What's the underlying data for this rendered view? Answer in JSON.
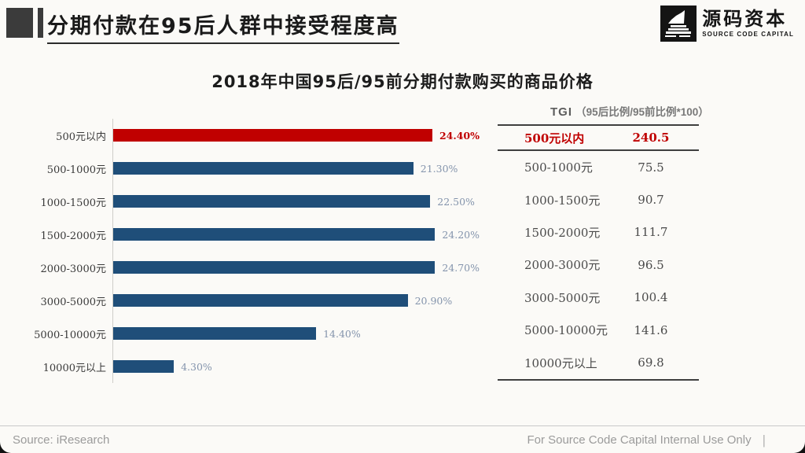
{
  "header": {
    "title": "分期付款在95后人群中接受程度高",
    "logo": {
      "cn": "源码资本",
      "en": "SOURCE CODE CAPITAL"
    }
  },
  "chart_data": {
    "type": "bar",
    "orientation": "horizontal",
    "title": "2018年中国95后/95前分期付款购买的商品价格",
    "categories": [
      "500元以内",
      "500-1000元",
      "1000-1500元",
      "1500-2000元",
      "2000-3000元",
      "3000-5000元",
      "5000-10000元",
      "10000元以上"
    ],
    "values": [
      24.4,
      21.3,
      22.5,
      24.2,
      24.7,
      20.9,
      14.4,
      4.3
    ],
    "value_labels": [
      "24.40%",
      "21.30%",
      "22.50%",
      "24.20%",
      "24.70%",
      "20.90%",
      "14.40%",
      "4.30%"
    ],
    "highlight_index": 0,
    "xlim": [
      0,
      26
    ],
    "grid": false,
    "legend": "none",
    "colors": {
      "highlight_bar": "#c00000",
      "default_bar": "#1f4e79",
      "highlight_value_label": "#c00000",
      "default_value_label": "#8494ac"
    }
  },
  "tgi_table": {
    "header_main": "TGI",
    "header_sub": "（95后比例/95前比例*100）",
    "highlight_color": "#c00000",
    "rows": [
      {
        "label": "500元以内",
        "value": "240.5",
        "highlight": true
      },
      {
        "label": "500-1000元",
        "value": "75.5",
        "highlight": false
      },
      {
        "label": "1000-1500元",
        "value": "90.7",
        "highlight": false
      },
      {
        "label": "1500-2000元",
        "value": "111.7",
        "highlight": false
      },
      {
        "label": "2000-3000元",
        "value": "96.5",
        "highlight": false
      },
      {
        "label": "3000-5000元",
        "value": "100.4",
        "highlight": false
      },
      {
        "label": "5000-10000元",
        "value": "141.6",
        "highlight": false
      },
      {
        "label": "10000元以上",
        "value": "69.8",
        "highlight": false
      }
    ]
  },
  "footer": {
    "source": "Source: iResearch",
    "note": "For Source Code Capital Internal Use Only",
    "separator": "|"
  }
}
